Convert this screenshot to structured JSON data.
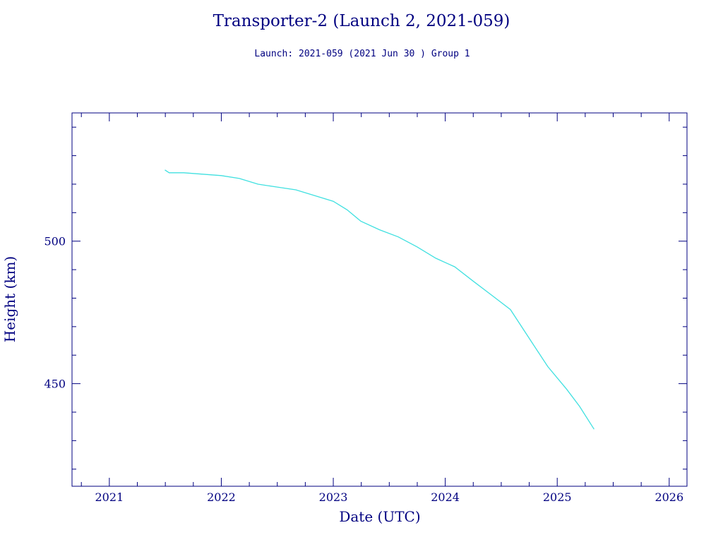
{
  "chart_data": {
    "type": "line",
    "title": "Transporter-2 (Launch 2, 2021-059)",
    "subtitle": "Launch: 2021-059  (2021 Jun 30 )  Group 1",
    "xlabel": "Date (UTC)",
    "ylabel": "Height (km)",
    "xlim": [
      "2020-09-01",
      "2026-02-28"
    ],
    "ylim": [
      414,
      545
    ],
    "x_ticks": [
      "2021",
      "2022",
      "2023",
      "2024",
      "2025",
      "2026"
    ],
    "y_ticks": [
      "450",
      "500"
    ],
    "grid": false,
    "line_color": "#40e0e0",
    "axis_color": "#000080",
    "series": [
      {
        "x": [
          "2021-07-01",
          "2021-07-15",
          "2021-09-01",
          "2021-11-01",
          "2022-01-01",
          "2022-03-01",
          "2022-05-01",
          "2022-07-01",
          "2022-09-01",
          "2022-11-01",
          "2023-01-01",
          "2023-02-15",
          "2023-04-01",
          "2023-06-01",
          "2023-08-01",
          "2023-10-01",
          "2023-12-01",
          "2024-02-01",
          "2024-04-01",
          "2024-06-01",
          "2024-08-01",
          "2024-10-01",
          "2024-12-01",
          "2025-02-01",
          "2025-03-15",
          "2025-05-01"
        ],
        "values": [
          525,
          524,
          524,
          523.5,
          523,
          522,
          520,
          519,
          518,
          516,
          514,
          511,
          507,
          504,
          501.5,
          498,
          494,
          491,
          486,
          481,
          476,
          466,
          456,
          448,
          442,
          434
        ]
      }
    ]
  }
}
